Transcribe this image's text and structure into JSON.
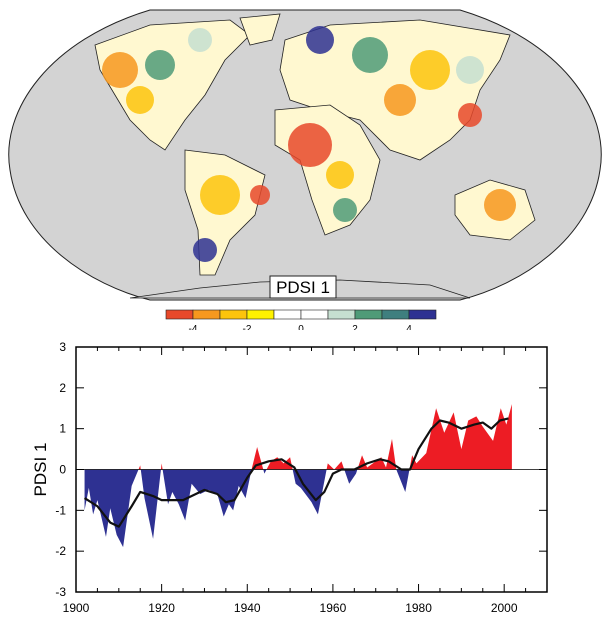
{
  "chart_data": [
    {
      "type": "heatmap",
      "subtype": "world-map",
      "map_label": "PDSI 1",
      "background_color": "#d3d3d3",
      "colorbar": {
        "colors": [
          "#e8492a",
          "#f7981e",
          "#fdc40c",
          "#fff200",
          "#ffffff",
          "#ffffff",
          "#c6dfd0",
          "#4f9b78",
          "#3f7f7f",
          "#2e3192"
        ],
        "boundaries": [
          -5,
          -4,
          -3,
          -2,
          -1,
          0,
          1,
          2,
          3,
          4,
          5
        ],
        "tick_labels": [
          "-4",
          "-2",
          "0",
          "2",
          "4"
        ]
      }
    },
    {
      "type": "area",
      "ylabel": "PDSI 1",
      "xlabel": "",
      "xlim": [
        1900,
        2010
      ],
      "ylim": [
        -3,
        3
      ],
      "xticks": [
        "1900",
        "1920",
        "1940",
        "1960",
        "1980",
        "2000"
      ],
      "yticks": [
        "-3",
        "-2",
        "-1",
        "0",
        "1",
        "2",
        "3"
      ],
      "positive_color": "#ed1c24",
      "negative_color": "#2e3192",
      "series": [
        {
          "x": [
            1902,
            1903,
            1904,
            1905,
            1907,
            1908,
            1909.5,
            1911,
            1913,
            1915,
            1916,
            1918,
            1920,
            1921.5,
            1922.5,
            1924,
            1925.5,
            1927,
            1929,
            1931,
            1933,
            1934.5,
            1935.7,
            1936.7,
            1938,
            1939.6,
            1941,
            1942.3,
            1944,
            1945.5,
            1947,
            1948.5,
            1950,
            1951.3,
            1952.5,
            1955,
            1956.5,
            1958.8,
            1960.3,
            1962,
            1963.8,
            1965.4,
            1966.8,
            1968,
            1971.3,
            1972.4,
            1973.8,
            1974.8,
            1976.9,
            1978.5,
            1979.5,
            1981.8,
            1984.1,
            1986,
            1988.2,
            1990,
            1991.6,
            1993.5,
            1995,
            1997.4,
            1999.2,
            2000.5,
            2001.8
          ],
          "y": [
            -1.0,
            -0.45,
            -1.1,
            -0.75,
            -1.65,
            -0.95,
            -1.6,
            -1.9,
            -0.4,
            0.1,
            -0.7,
            -1.7,
            0.15,
            -0.85,
            -0.55,
            -0.85,
            -1.25,
            -0.35,
            -0.6,
            -0.5,
            -0.6,
            -1.15,
            -0.85,
            -1.0,
            -0.4,
            -0.7,
            0.0,
            0.55,
            -0.1,
            0.2,
            0.3,
            0.15,
            0.3,
            -0.35,
            -0.45,
            -0.8,
            -1.1,
            0.15,
            0.0,
            0.2,
            -0.35,
            -0.1,
            0.35,
            0.05,
            0.3,
            0.05,
            0.75,
            0.0,
            -0.55,
            0.35,
            0.15,
            0.4,
            1.5,
            0.9,
            1.4,
            0.5,
            1.2,
            1.3,
            1.05,
            0.7,
            1.5,
            1.1,
            1.6
          ]
        },
        {
          "style": "smoothed-black-line",
          "x": [
            1902,
            1905,
            1908,
            1910,
            1913,
            1915,
            1918,
            1920,
            1925,
            1930,
            1933,
            1935,
            1937,
            1940,
            1942,
            1945,
            1948,
            1951,
            1953,
            1956,
            1958,
            1960,
            1962,
            1965,
            1968,
            1971,
            1973,
            1976,
            1978,
            1980,
            1983,
            1985,
            1987,
            1990,
            1993,
            1995,
            1997,
            1999,
            2001
          ],
          "y": [
            -0.7,
            -0.9,
            -1.3,
            -1.4,
            -0.9,
            -0.55,
            -0.65,
            -0.75,
            -0.75,
            -0.5,
            -0.6,
            -0.8,
            -0.75,
            -0.2,
            0.1,
            0.2,
            0.25,
            0.05,
            -0.35,
            -0.75,
            -0.55,
            -0.1,
            0.0,
            0.0,
            0.15,
            0.25,
            0.2,
            0.0,
            0.0,
            0.5,
            1.0,
            1.2,
            1.15,
            1.0,
            1.1,
            1.15,
            1.0,
            1.2,
            1.25
          ]
        }
      ]
    }
  ]
}
